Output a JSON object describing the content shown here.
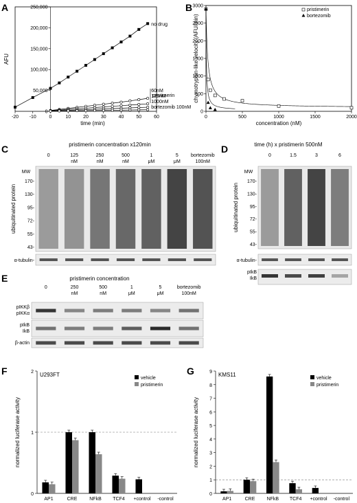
{
  "panels": {
    "A": "A",
    "B": "B",
    "C": "C",
    "D": "D",
    "E": "E",
    "F": "F",
    "G": "G"
  },
  "chart_data": [
    {
      "id": "A",
      "type": "line",
      "xlabel": "time (min)",
      "ylabel": "AFU",
      "xlim": [
        -20,
        60
      ],
      "ylim": [
        0,
        250000
      ],
      "xticks": [
        "-20",
        "-10",
        "0",
        "10",
        "20",
        "30",
        "40",
        "50",
        "60"
      ],
      "yticks": [
        "0",
        "50,000",
        "100,000",
        "150,000",
        "200,000",
        "250,000"
      ],
      "group_label": "pristimerin",
      "series": [
        {
          "name": "no drug",
          "x": [
            -20,
            -10,
            0,
            5,
            10,
            15,
            20,
            25,
            30,
            35,
            40,
            45,
            50,
            55
          ],
          "y": [
            10000,
            33000,
            55000,
            68000,
            82000,
            96000,
            110000,
            124000,
            138000,
            152000,
            166000,
            180000,
            196000,
            210000
          ],
          "marker": "filled-square"
        },
        {
          "name": "60nM",
          "x": [
            0,
            5,
            10,
            15,
            20,
            25,
            30,
            35,
            40,
            45,
            50,
            55
          ],
          "y": [
            2000,
            4500,
            7000,
            9500,
            12000,
            14500,
            17000,
            19500,
            22000,
            25000,
            28000,
            31000
          ],
          "marker": "open-circle"
        },
        {
          "name": "125nM",
          "x": [
            0,
            5,
            10,
            15,
            20,
            25,
            30,
            35,
            40,
            45,
            50,
            55
          ],
          "y": [
            1500,
            3000,
            4500,
            6000,
            7500,
            9000,
            10500,
            12000,
            13500,
            15000,
            16500,
            18000
          ],
          "marker": "open-circle"
        },
        {
          "name": "1000nM",
          "x": [
            0,
            5,
            10,
            15,
            20,
            25,
            30,
            35,
            40,
            45,
            50,
            55
          ],
          "y": [
            1000,
            1800,
            2600,
            3400,
            4200,
            5000,
            5800,
            6600,
            7400,
            8200,
            9000,
            9800
          ],
          "marker": "open-circle"
        },
        {
          "name": "bortezomib 100nM",
          "x": [
            0,
            5,
            10,
            15,
            20,
            25,
            30,
            35,
            40,
            45,
            50,
            55
          ],
          "y": [
            500,
            800,
            1100,
            1400,
            1700,
            2000,
            2300,
            2600,
            2900,
            3200,
            3500,
            3800
          ],
          "marker": "open-circle"
        }
      ]
    },
    {
      "id": "B",
      "type": "scatter",
      "xlabel": "concentration (nM)",
      "ylabel": "chymotrypsin-like velocity (AFU/min)",
      "xlim": [
        0,
        2000
      ],
      "ylim": [
        0,
        3000
      ],
      "xticks": [
        "0",
        "500",
        "1000",
        "1500",
        "2000"
      ],
      "yticks": [
        "0",
        "500",
        "1000",
        "1500",
        "2000",
        "2500",
        "3000"
      ],
      "legend": "top-right",
      "series": [
        {
          "name": "pristimerin",
          "x": [
            0,
            30,
            60,
            125,
            250,
            500,
            1000,
            2000
          ],
          "y": [
            2900,
            900,
            600,
            450,
            350,
            300,
            150,
            100
          ],
          "marker": "open-square"
        },
        {
          "name": "bortezomib",
          "x": [
            0,
            30,
            60,
            125
          ],
          "y": [
            2900,
            250,
            100,
            50
          ],
          "marker": "filled-triangle"
        }
      ]
    },
    {
      "id": "F",
      "type": "bar",
      "title": "U293FT",
      "ylabel": "normalized luciferase activity",
      "ylim": [
        0,
        2
      ],
      "yticks": [
        "0",
        "1",
        "2"
      ],
      "categories": [
        "AP1",
        "CRE",
        "NFkB",
        "TCF4",
        "+control",
        "-control"
      ],
      "legend": "top-right",
      "series": [
        {
          "name": "vehicle",
          "values": [
            0.18,
            1.0,
            1.0,
            0.29,
            0.23,
            0.0
          ],
          "color": "#000000"
        },
        {
          "name": "pristimerin",
          "values": [
            0.15,
            0.87,
            0.64,
            0.24,
            0.0,
            0.0
          ],
          "color": "#888888"
        }
      ]
    },
    {
      "id": "G",
      "type": "bar",
      "title": "KMS11",
      "ylabel": "normalized luciferase activity",
      "ylim": [
        0,
        9
      ],
      "yticks": [
        "0",
        "1",
        "2",
        "3",
        "4",
        "5",
        "6",
        "7",
        "8",
        "9"
      ],
      "categories": [
        "AP1",
        "CRE",
        "NFkB",
        "TCF4",
        "+control",
        "-control"
      ],
      "legend": "top-right",
      "series": [
        {
          "name": "vehicle",
          "values": [
            0.15,
            1.0,
            8.6,
            0.75,
            0.4,
            0.0
          ],
          "color": "#000000"
        },
        {
          "name": "pristimerin",
          "values": [
            0.18,
            0.9,
            2.3,
            0.3,
            0.0,
            0.0
          ],
          "color": "#888888"
        }
      ]
    }
  ],
  "blotC": {
    "title": "pristimerin concentration x120min",
    "lanes": [
      "0",
      "125\nnM",
      "250\nnM",
      "500\nnM",
      "1\nμM",
      "5\nμM",
      "bortezomib\n100nM"
    ],
    "intensity": [
      0.35,
      0.4,
      0.6,
      0.7,
      0.75,
      0.95,
      0.85
    ],
    "mw_label": "MW",
    "mw": [
      "170-",
      "130-",
      "95-",
      "72-",
      "55-",
      "43-"
    ],
    "ylabel": "ubiquitinated protein",
    "loading": "α-tubulin-"
  },
  "blotD": {
    "title": "time (h) x pristimerin 500nM",
    "lanes": [
      "0",
      "1.5",
      "3",
      "6"
    ],
    "intensity": [
      0.35,
      0.75,
      0.95,
      0.55
    ],
    "mw_label": "MW",
    "mw": [
      "170-",
      "130-",
      "95-",
      "72-",
      "55-",
      "43-"
    ],
    "ylabel": "ubiquitinated protein",
    "loading": "α-tubulin-",
    "band_labels": [
      "pIkB",
      "IkB"
    ]
  },
  "blotE": {
    "title": "pristimerin concentration",
    "lanes": [
      "0",
      "250\nnM",
      "500\nnM",
      "1\nμM",
      "5\nμM",
      "bortezomib\n100nM"
    ],
    "rows": [
      {
        "labels": [
          "pIKKβ",
          "pIKKα"
        ]
      },
      {
        "labels": [
          "pIkB",
          "IkB"
        ]
      },
      {
        "labels": [
          "β-actin"
        ]
      }
    ]
  }
}
